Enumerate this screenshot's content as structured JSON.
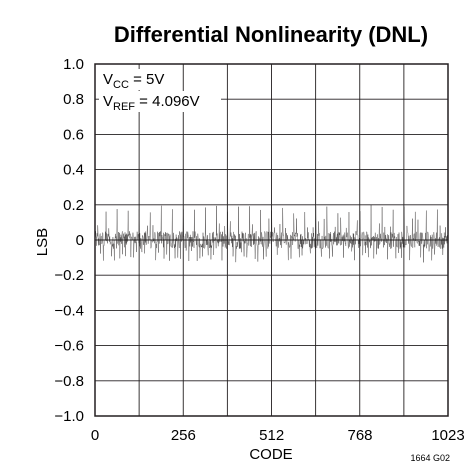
{
  "chart_data": {
    "type": "line",
    "title": "Differential Nonlinearity (DNL)",
    "xlabel": "CODE",
    "ylabel": "LSB",
    "xlim": [
      0,
      1023
    ],
    "ylim": [
      -1.0,
      1.0
    ],
    "x_ticks": [
      0,
      256,
      512,
      768,
      1023
    ],
    "x_tick_labels": [
      "0",
      "256",
      "512",
      "768",
      "1023"
    ],
    "y_ticks": [
      1.0,
      0.8,
      0.6,
      0.4,
      0.2,
      0,
      -0.2,
      -0.4,
      -0.6,
      -0.8,
      -1.0
    ],
    "y_tick_labels": [
      "1.0",
      "0.8",
      "0.6",
      "0.4",
      "0.2",
      "0",
      "−0.2",
      "−0.4",
      "−0.6",
      "−0.8",
      "−1.0"
    ],
    "grid": true,
    "annotations": [
      {
        "main": "V",
        "sub": "CC",
        "rest": " = 5V"
      },
      {
        "main": "V",
        "sub": "REF",
        "rest": " = 4.096V"
      }
    ],
    "figure_id": "1664 G02",
    "series": [
      {
        "x_range": [
          0,
          1023
        ],
        "baseline": 0,
        "noise_band": [
          -0.05,
          0.05
        ],
        "spike_period": 16,
        "spike_max": 0.2,
        "spike_min": -0.12
      }
    ]
  }
}
